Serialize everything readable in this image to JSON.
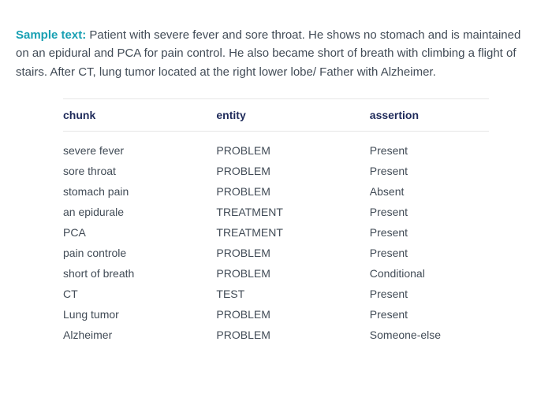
{
  "sample": {
    "label": "Sample text:",
    "body": "Patient with severe fever and sore throat. He shows no stomach and is maintained on an epidural and PCA for pain control. He also became short of breath with climbing a flight of stairs. After CT, lung tumor located at the right lower lobe/ Father with Alzheimer."
  },
  "table": {
    "columns": [
      "chunk",
      "entity",
      "assertion"
    ],
    "rows": [
      [
        "severe fever",
        "PROBLEM",
        "Present"
      ],
      [
        "sore throat",
        "PROBLEM",
        "Present"
      ],
      [
        "stomach pain",
        "PROBLEM",
        "Absent"
      ],
      [
        "an epidurale",
        "TREATMENT",
        "Present"
      ],
      [
        "PCA",
        "TREATMENT",
        "Present"
      ],
      [
        "pain controle",
        "PROBLEM",
        "Present"
      ],
      [
        "short of breath",
        "PROBLEM",
        "Conditional"
      ],
      [
        "CT",
        "TEST",
        "Present"
      ],
      [
        "Lung tumor",
        "PROBLEM",
        "Present"
      ],
      [
        "Alzheimer",
        "PROBLEM",
        "Someone-else"
      ]
    ]
  },
  "style": {
    "label_color": "#18a0b3",
    "header_color": "#1e2a5a",
    "body_color": "#414b56",
    "border_color": "#e6e6e6",
    "background": "#ffffff",
    "body_fontsize": 15,
    "table_fontsize": 14
  }
}
